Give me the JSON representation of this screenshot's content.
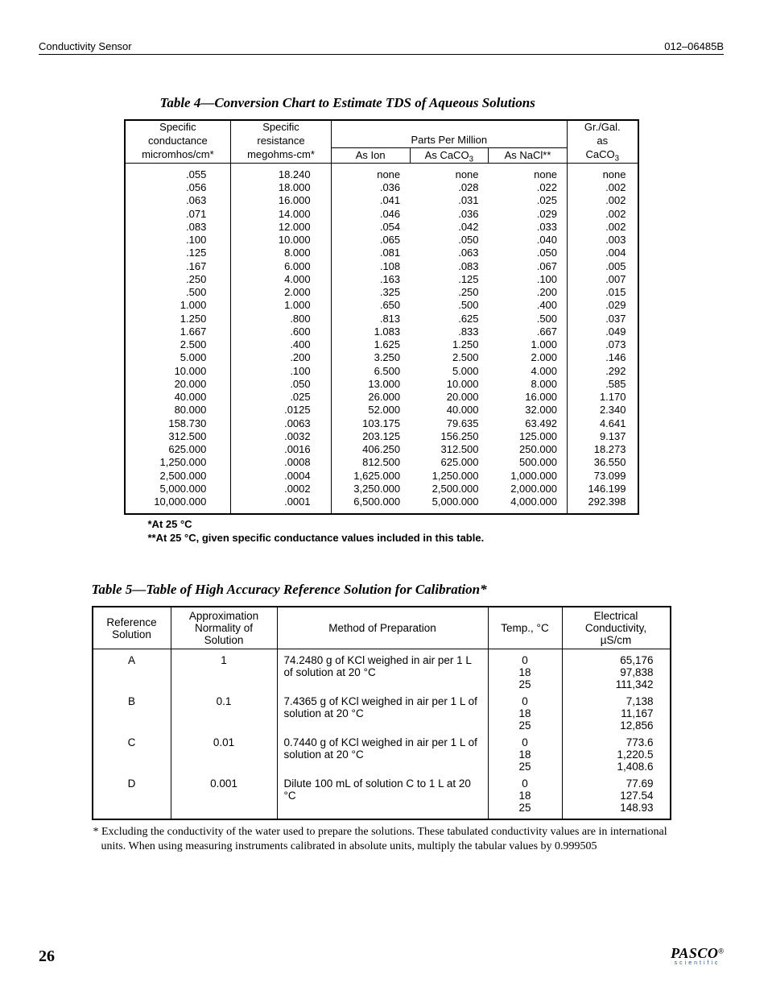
{
  "header": {
    "left": "Conductivity Sensor",
    "right": "012–06485B"
  },
  "footer": {
    "page": "26",
    "brand": "PASCO",
    "brand_reg": "®",
    "brand_sub": "scientific"
  },
  "table4": {
    "caption": "Table 4—Conversion Chart to Estimate TDS of Aqueous Solutions",
    "columns": {
      "c1_top": "Specific",
      "c1_mid": "conductance",
      "c1_bot": "micromhos/cm*",
      "c2_top": "Specific",
      "c2_mid": "resistance",
      "c2_bot": "megohms-cm*",
      "ppm_label": "Parts Per Million",
      "c3": "As Ion",
      "c4_pre": "As CaCO",
      "c4_sub": "3",
      "c5": "As NaCl**",
      "c6_top": "Gr./Gal.",
      "c6_mid": "as",
      "c6_bot_pre": "CaCO",
      "c6_bot_sub": "3"
    },
    "rows": [
      [
        ".055",
        "18.240",
        "none",
        "none",
        "none",
        "none"
      ],
      [
        ".056",
        "18.000",
        ".036",
        ".028",
        ".022",
        ".002"
      ],
      [
        ".063",
        "16.000",
        ".041",
        ".031",
        ".025",
        ".002"
      ],
      [
        ".071",
        "14.000",
        ".046",
        ".036",
        ".029",
        ".002"
      ],
      [
        ".083",
        "12.000",
        ".054",
        ".042",
        ".033",
        ".002"
      ],
      [
        ".100",
        "10.000",
        ".065",
        ".050",
        ".040",
        ".003"
      ],
      [
        ".125",
        "8.000",
        ".081",
        ".063",
        ".050",
        ".004"
      ],
      [
        ".167",
        "6.000",
        ".108",
        ".083",
        ".067",
        ".005"
      ],
      [
        ".250",
        "4.000",
        ".163",
        ".125",
        ".100",
        ".007"
      ],
      [
        ".500",
        "2.000",
        ".325",
        ".250",
        ".200",
        ".015"
      ],
      [
        "1.000",
        "1.000",
        ".650",
        ".500",
        ".400",
        ".029"
      ],
      [
        "1.250",
        ".800",
        ".813",
        ".625",
        ".500",
        ".037"
      ],
      [
        "1.667",
        ".600",
        "1.083",
        ".833",
        ".667",
        ".049"
      ],
      [
        "2.500",
        ".400",
        "1.625",
        "1.250",
        "1.000",
        ".073"
      ],
      [
        "5.000",
        ".200",
        "3.250",
        "2.500",
        "2.000",
        ".146"
      ],
      [
        "10.000",
        ".100",
        "6.500",
        "5.000",
        "4.000",
        ".292"
      ],
      [
        "20.000",
        ".050",
        "13.000",
        "10.000",
        "8.000",
        ".585"
      ],
      [
        "40.000",
        ".025",
        "26.000",
        "20.000",
        "16.000",
        "1.170"
      ],
      [
        "80.000",
        ".0125",
        "52.000",
        "40.000",
        "32.000",
        "2.340"
      ],
      [
        "158.730",
        ".0063",
        "103.175",
        "79.635",
        "63.492",
        "4.641"
      ],
      [
        "312.500",
        ".0032",
        "203.125",
        "156.250",
        "125.000",
        "9.137"
      ],
      [
        "625.000",
        ".0016",
        "406.250",
        "312.500",
        "250.000",
        "18.273"
      ],
      [
        "1,250.000",
        ".0008",
        "812.500",
        "625.000",
        "500.000",
        "36.550"
      ],
      [
        "2,500.000",
        ".0004",
        "1,625.000",
        "1,250.000",
        "1,000.000",
        "73.099"
      ],
      [
        "5,000.000",
        ".0002",
        "3,250.000",
        "2,500.000",
        "2,000.000",
        "146.199"
      ],
      [
        "10,000.000",
        ".0001",
        "6,500.000",
        "5,000.000",
        "4,000.000",
        "292.398"
      ]
    ],
    "note1": "*At 25 °C",
    "note2": "**At 25 °C, given specific conductance values included in this table."
  },
  "table5": {
    "caption": "Table 5—Table of High Accuracy Reference Solution for Calibration*",
    "columns": {
      "c1": "Reference Solution",
      "c2": "Approximation Normality of Solution",
      "c3": "Method of Preparation",
      "c4": "Temp., °C",
      "c5": "Electrical Conductivity, µS/cm"
    },
    "rows": [
      {
        "ref": "A",
        "norm": "1",
        "method": "74.2480 g of KCl weighed in air per 1 L of solution at 20 °C",
        "temps": [
          "0",
          "18",
          "25"
        ],
        "ec": [
          "65,176",
          "97,838",
          "111,342"
        ]
      },
      {
        "ref": "B",
        "norm": "0.1",
        "method": "7.4365 g of KCl weighed in air per 1 L of solution at 20 °C",
        "temps": [
          "0",
          "18",
          "25"
        ],
        "ec": [
          "7,138",
          "11,167",
          "12,856"
        ]
      },
      {
        "ref": "C",
        "norm": "0.01",
        "method": "0.7440 g of KCl weighed in air per 1 L of solution at 20 °C",
        "temps": [
          "0",
          "18",
          "25"
        ],
        "ec": [
          "773.6",
          "1,220.5",
          "1,408.6"
        ]
      },
      {
        "ref": "D",
        "norm": "0.001",
        "method": "Dilute 100 mL of solution C to 1 L at 20 °C",
        "temps": [
          "0",
          "18",
          "25"
        ],
        "ec": [
          "77.69",
          "127.54",
          "148.93"
        ]
      }
    ],
    "note": "* Excluding the conductivity of the water used to prepare the solutions.  These tabulated conductivity values are in international units. When using measuring instruments calibrated in absolute units, multiply the tabular values by 0.999505"
  }
}
